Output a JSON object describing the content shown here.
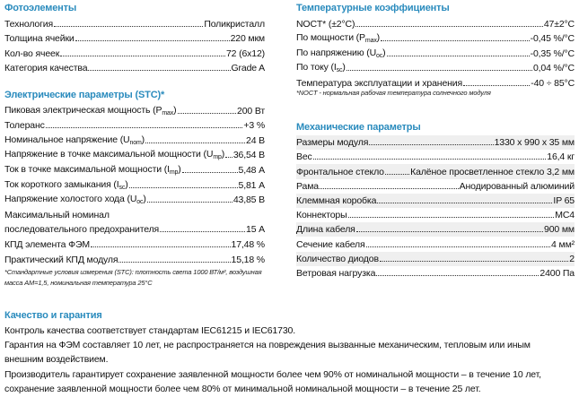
{
  "columns": [
    {
      "sections": [
        {
          "title": "Фотоэлементы",
          "rows": [
            {
              "label": [
                "Технология"
              ],
              "value": "Поликристалл"
            },
            {
              "label": [
                "Толщина ячейки"
              ],
              "value": "220 мкм"
            },
            {
              "label": [
                "Кол-во ячеек"
              ],
              "value": "72 (6x12)"
            },
            {
              "label": [
                "Категория качества"
              ],
              "value": "Grade A"
            }
          ]
        },
        {
          "title": "Электрические параметры (STC)*",
          "rows": [
            {
              "label": [
                "Пиковая электрическая мощность (P",
                "max",
                ")"
              ],
              "value": "200 Вт"
            },
            {
              "label": [
                "Толеранс"
              ],
              "value": "+3 %"
            },
            {
              "label": [
                "Номинальное напряжение (U",
                "nom",
                ")"
              ],
              "value": "24 В"
            },
            {
              "label": [
                "Напряжение в точке максимальной мощности (U",
                "mp",
                ")"
              ],
              "value": "36,54 В"
            },
            {
              "label": [
                "Ток в точке максимальной мощности (I",
                "mp",
                ")"
              ],
              "value": "5,48 А"
            },
            {
              "label": [
                "Ток короткого замыкания (I",
                "sc",
                ")"
              ],
              "value": "5,81 А"
            },
            {
              "label": [
                "Напряжение холостого хода (U",
                "oc",
                ")"
              ],
              "value": "43,85 В"
            },
            {
              "label": [
                "Максимальный номинал"
              ]
            },
            {
              "label": [
                "последовательного предохранителя"
              ],
              "value": "15 А"
            },
            {
              "label": [
                "КПД элемента ФЭМ"
              ],
              "value": "17,48 %"
            },
            {
              "label": [
                "Практический КПД модуля"
              ],
              "value": "15,18 %"
            }
          ],
          "note": "*Стандартные условия измерения (STC): плотность света 1000 ВТ/м², воздушная масса AM=1,5, номинальная температура 25°C"
        }
      ]
    },
    {
      "sections": [
        {
          "title": "Температурные коэффициенты",
          "rows": [
            {
              "label": [
                "NOCT* (±2°C)"
              ],
              "value": "47±2°C"
            },
            {
              "label": [
                "По мощности (P",
                "max",
                ")"
              ],
              "value": "-0,45 %/°C"
            },
            {
              "label": [
                "По напряжению (U",
                "oc",
                ")"
              ],
              "value": "-0,35 %/°C"
            },
            {
              "label": [
                "По току (I",
                "sc",
                ")"
              ],
              "value": "0,04 %/°C"
            },
            {
              "label": [
                "Температура эксплуатации и хранения"
              ],
              "value": "-40 ÷ 85°C"
            }
          ],
          "note": "*NOCT - нормальная рабочая температура солнечного модуля"
        },
        {
          "title": "Механические параметры",
          "rows": [
            {
              "label": [
                "Размеры модуля"
              ],
              "value": "1330 x 990 x 35 мм"
            },
            {
              "label": [
                "Вес"
              ],
              "value": "16,4 кг"
            },
            {
              "label": [
                "Фронтальное стекло"
              ],
              "value": "Калёное просветленное стекло 3,2 мм"
            },
            {
              "label": [
                "Рама"
              ],
              "value": "Анодированный алюминий"
            },
            {
              "label": [
                "Клеммная коробка"
              ],
              "value": "IP 65"
            },
            {
              "label": [
                "Коннекторы"
              ],
              "value": "MC4"
            },
            {
              "label": [
                "Длина кабеля"
              ],
              "value": "900 мм"
            },
            {
              "label": [
                "Сечение кабеля"
              ],
              "value": "4 мм²"
            },
            {
              "label": [
                "Количество диодов"
              ],
              "value": "2"
            },
            {
              "label": [
                "Ветровая нагрузка"
              ],
              "value": "2400 Па"
            }
          ]
        }
      ]
    }
  ],
  "quality": {
    "title": "Качество и гарантия",
    "paragraphs": [
      "Контроль качества соответствует стандартам IEC61215 и IEC61730.",
      "Гарантия на ФЭМ составляет 10 лет, не распространяется на повреждения вызванные механическим, тепловым или иным внешним воздействием.",
      "Производитель гарантирует сохранение заявленной мощности более чем 90% от номинальной мощности – в течение 10 лет, сохранение заявленной мощности более чем 80% от минимальной номинальной мощности – в течение 25 лет."
    ]
  }
}
